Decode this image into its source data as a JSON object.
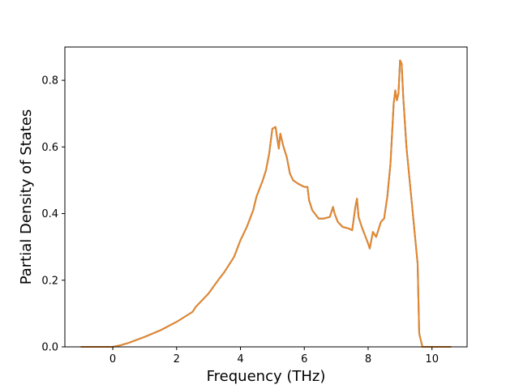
{
  "chart_data": {
    "type": "line",
    "title": "",
    "xlabel": "Frequency (THz)",
    "ylabel": "Partial Density of States",
    "xlim": [
      -1.5,
      11.1
    ],
    "ylim": [
      0.0,
      0.9
    ],
    "x_ticks": [
      0,
      2,
      4,
      6,
      8,
      10
    ],
    "y_ticks": [
      0.0,
      0.2,
      0.4,
      0.6,
      0.8
    ],
    "x_tick_labels": [
      "0",
      "2",
      "4",
      "6",
      "8",
      "10"
    ],
    "y_tick_labels": [
      "0.0",
      "0.2",
      "0.4",
      "0.6",
      "0.8"
    ],
    "grid": false,
    "series": [
      {
        "color": "#1f77b4",
        "x": [
          -1.0,
          0.0,
          0.25,
          0.5,
          1.0,
          1.5,
          2.0,
          2.5,
          2.6,
          2.7,
          2.8,
          3.0,
          3.3,
          3.5,
          3.8,
          4.0,
          4.2,
          4.4,
          4.5,
          4.7,
          4.8,
          4.9,
          5.0,
          5.1,
          5.2,
          5.25,
          5.35,
          5.45,
          5.55,
          5.65,
          5.8,
          6.0,
          6.1,
          6.15,
          6.25,
          6.45,
          6.6,
          6.8,
          6.9,
          6.95,
          7.05,
          7.2,
          7.4,
          7.5,
          7.6,
          7.65,
          7.7,
          7.8,
          8.0,
          8.05,
          8.15,
          8.25,
          8.3,
          8.4,
          8.5,
          8.6,
          8.7,
          8.8,
          8.85,
          8.9,
          8.95,
          9.0,
          9.05,
          9.1,
          9.2,
          9.4,
          9.55,
          9.6,
          9.7,
          10.0,
          10.6
        ],
        "values": [
          0.0,
          0.0,
          0.005,
          0.012,
          0.03,
          0.05,
          0.075,
          0.105,
          0.12,
          0.13,
          0.14,
          0.16,
          0.2,
          0.225,
          0.27,
          0.32,
          0.36,
          0.41,
          0.45,
          0.5,
          0.53,
          0.58,
          0.655,
          0.66,
          0.595,
          0.64,
          0.6,
          0.57,
          0.52,
          0.5,
          0.49,
          0.48,
          0.48,
          0.44,
          0.41,
          0.385,
          0.385,
          0.39,
          0.42,
          0.4,
          0.375,
          0.36,
          0.355,
          0.35,
          0.42,
          0.445,
          0.39,
          0.36,
          0.31,
          0.295,
          0.345,
          0.33,
          0.345,
          0.375,
          0.385,
          0.45,
          0.55,
          0.73,
          0.77,
          0.74,
          0.76,
          0.86,
          0.85,
          0.75,
          0.6,
          0.4,
          0.25,
          0.04,
          0.0,
          0.0,
          0.0
        ]
      },
      {
        "color": "#e8862a",
        "x": [
          -1.0,
          0.0,
          0.25,
          0.5,
          1.0,
          1.5,
          2.0,
          2.5,
          2.6,
          2.7,
          2.8,
          3.0,
          3.3,
          3.5,
          3.8,
          4.0,
          4.2,
          4.4,
          4.5,
          4.7,
          4.8,
          4.9,
          5.0,
          5.1,
          5.2,
          5.25,
          5.35,
          5.45,
          5.55,
          5.65,
          5.8,
          6.0,
          6.1,
          6.15,
          6.25,
          6.45,
          6.6,
          6.8,
          6.9,
          6.95,
          7.05,
          7.2,
          7.4,
          7.5,
          7.6,
          7.65,
          7.7,
          7.8,
          8.0,
          8.05,
          8.15,
          8.25,
          8.3,
          8.4,
          8.5,
          8.6,
          8.7,
          8.8,
          8.85,
          8.9,
          8.95,
          9.0,
          9.05,
          9.1,
          9.2,
          9.4,
          9.55,
          9.6,
          9.7,
          10.0,
          10.6
        ],
        "values": [
          0.0,
          0.0,
          0.005,
          0.012,
          0.03,
          0.05,
          0.075,
          0.105,
          0.12,
          0.13,
          0.14,
          0.16,
          0.2,
          0.225,
          0.27,
          0.32,
          0.36,
          0.41,
          0.45,
          0.5,
          0.53,
          0.58,
          0.655,
          0.66,
          0.595,
          0.64,
          0.6,
          0.57,
          0.52,
          0.5,
          0.49,
          0.48,
          0.48,
          0.44,
          0.41,
          0.385,
          0.385,
          0.39,
          0.42,
          0.4,
          0.375,
          0.36,
          0.355,
          0.35,
          0.42,
          0.445,
          0.39,
          0.36,
          0.31,
          0.295,
          0.345,
          0.33,
          0.345,
          0.375,
          0.385,
          0.45,
          0.55,
          0.73,
          0.77,
          0.74,
          0.76,
          0.86,
          0.85,
          0.75,
          0.6,
          0.4,
          0.25,
          0.04,
          0.0,
          0.0,
          0.0
        ]
      }
    ]
  }
}
